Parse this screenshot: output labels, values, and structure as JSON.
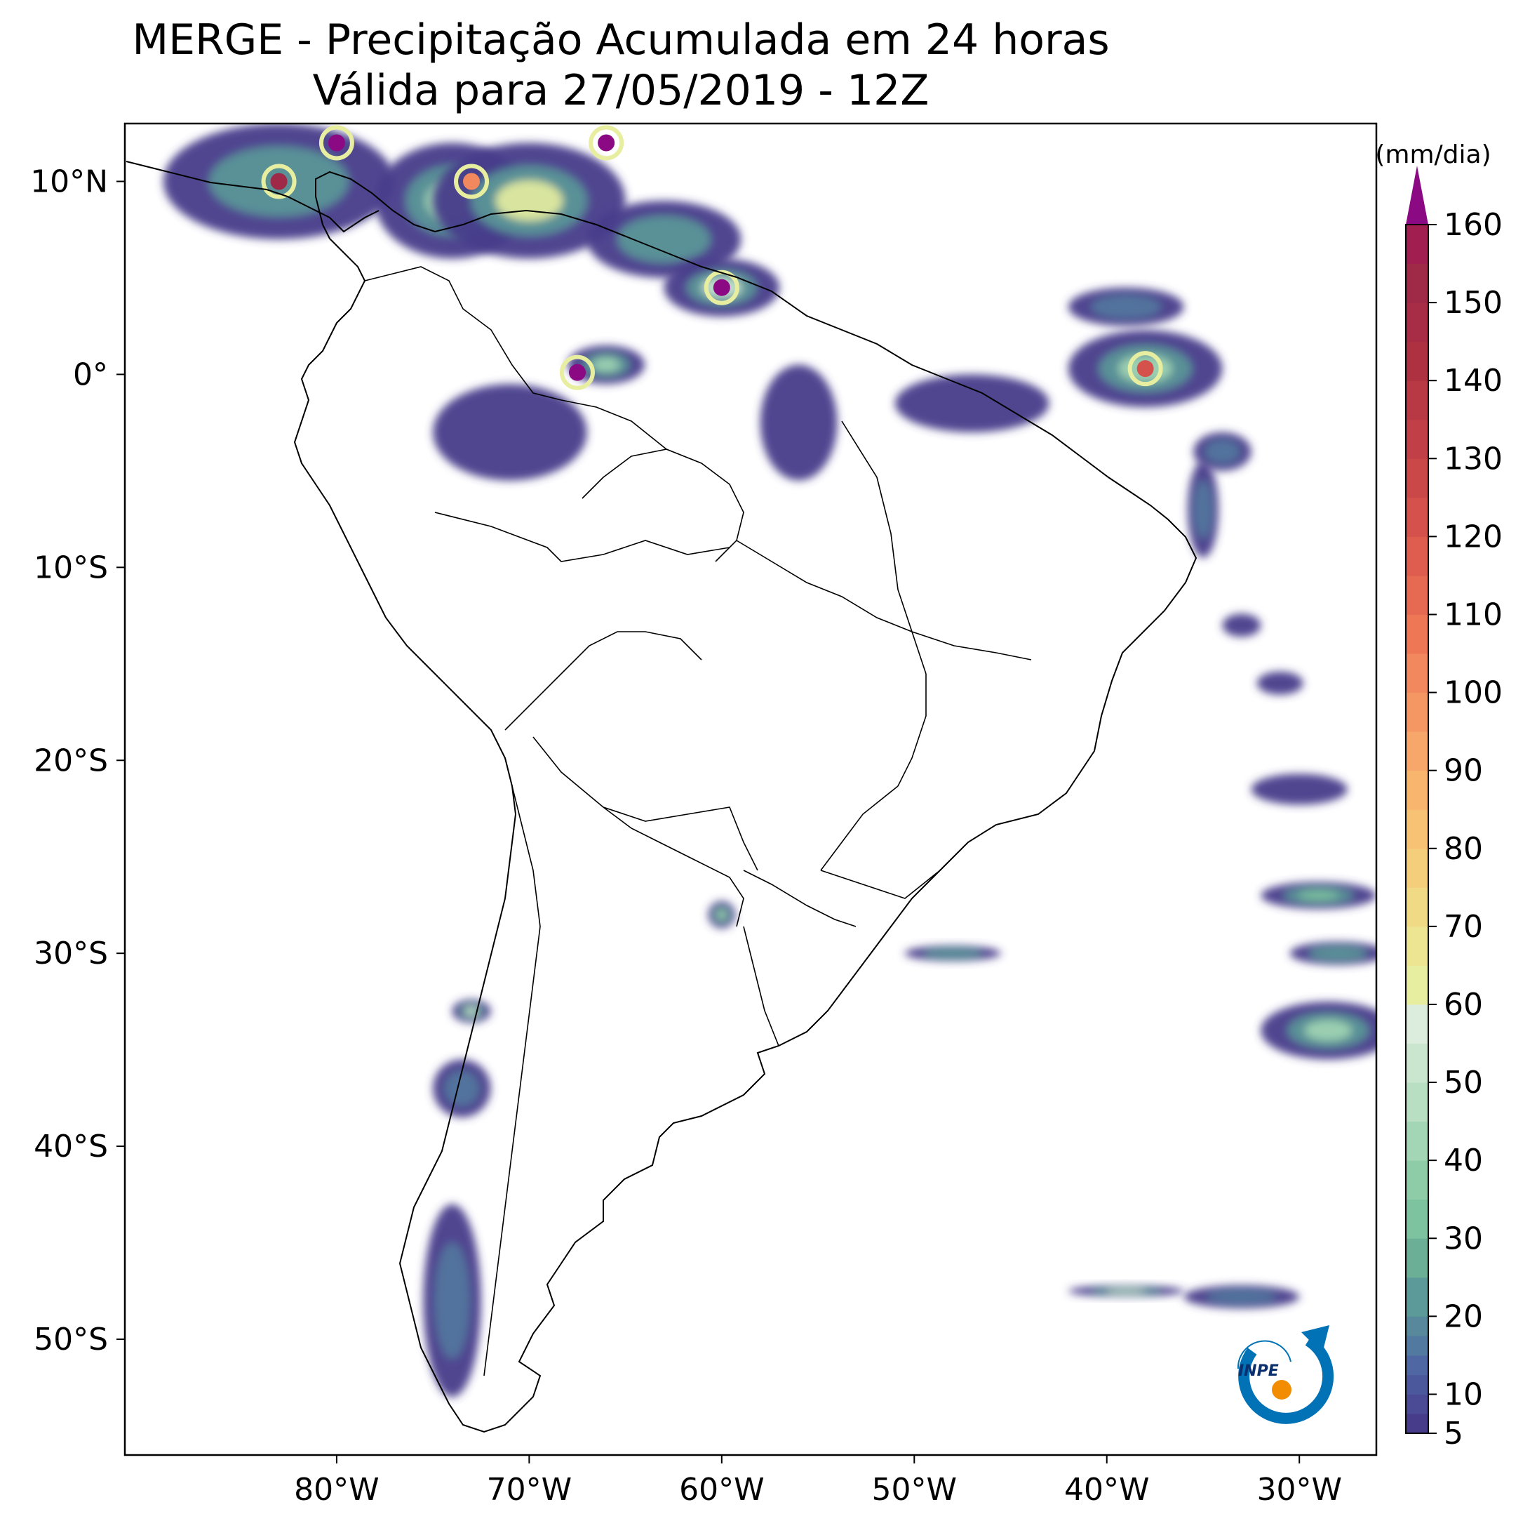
{
  "title": {
    "line1": "MERGE - Precipitação Acumulada em 24 horas",
    "line2": "Válida para 27/05/2019 - 12Z"
  },
  "map": {
    "projection": "PlateCarree",
    "lon_range": [
      -91,
      -26
    ],
    "lat_range": [
      -56,
      13
    ],
    "lon_ticks": [
      {
        "value": -80,
        "label": "80°W"
      },
      {
        "value": -70,
        "label": "70°W"
      },
      {
        "value": -60,
        "label": "60°W"
      },
      {
        "value": -50,
        "label": "50°W"
      },
      {
        "value": -40,
        "label": "40°W"
      },
      {
        "value": -30,
        "label": "30°W"
      }
    ],
    "lat_ticks": [
      {
        "value": 10,
        "label": "10°N"
      },
      {
        "value": 0,
        "label": "0°"
      },
      {
        "value": -10,
        "label": "10°S"
      },
      {
        "value": -20,
        "label": "20°S"
      },
      {
        "value": -30,
        "label": "30°S"
      },
      {
        "value": -40,
        "label": "40°S"
      },
      {
        "value": -50,
        "label": "50°S"
      }
    ],
    "rain_areas": [
      {
        "lon": -83,
        "lat": 10,
        "rx": 6,
        "ry": 3,
        "level": 20
      },
      {
        "lon": -74,
        "lat": 9,
        "rx": 4,
        "ry": 3,
        "level": 40
      },
      {
        "lon": -70,
        "lat": 9,
        "rx": 5,
        "ry": 3,
        "level": 60
      },
      {
        "lon": -63,
        "lat": 7,
        "rx": 4,
        "ry": 2,
        "level": 20
      },
      {
        "lon": -60,
        "lat": 4.5,
        "rx": 3,
        "ry": 1.5,
        "level": 50
      },
      {
        "lon": -66,
        "lat": 0.5,
        "rx": 2,
        "ry": 1,
        "level": 40
      },
      {
        "lon": -71,
        "lat": -3,
        "rx": 4,
        "ry": 2.5,
        "level": 10
      },
      {
        "lon": -56,
        "lat": -2.5,
        "rx": 2,
        "ry": 3,
        "level": 10
      },
      {
        "lon": -47,
        "lat": -1.5,
        "rx": 4,
        "ry": 1.5,
        "level": 10
      },
      {
        "lon": -38,
        "lat": 0.3,
        "rx": 4,
        "ry": 2,
        "level": 40
      },
      {
        "lon": -39,
        "lat": 3.5,
        "rx": 3,
        "ry": 1,
        "level": 15
      },
      {
        "lon": -35,
        "lat": -7,
        "rx": 0.8,
        "ry": 2.5,
        "level": 15
      },
      {
        "lon": -33,
        "lat": -13,
        "rx": 1,
        "ry": 0.6,
        "level": 10
      },
      {
        "lon": -31,
        "lat": -16,
        "rx": 1.2,
        "ry": 0.6,
        "level": 10
      },
      {
        "lon": -30,
        "lat": -21.5,
        "rx": 2.5,
        "ry": 0.8,
        "level": 10
      },
      {
        "lon": -29,
        "lat": -27,
        "rx": 3,
        "ry": 0.7,
        "level": 30
      },
      {
        "lon": -28,
        "lat": -30,
        "rx": 2.5,
        "ry": 0.6,
        "level": 20
      },
      {
        "lon": -28.5,
        "lat": -34,
        "rx": 3.5,
        "ry": 1.5,
        "level": 40
      },
      {
        "lon": -60,
        "lat": -28,
        "rx": 0.7,
        "ry": 0.7,
        "level": 40
      },
      {
        "lon": -48,
        "lat": -30,
        "rx": 2.5,
        "ry": 0.4,
        "level": 20
      },
      {
        "lon": -73,
        "lat": -33,
        "rx": 1,
        "ry": 0.6,
        "level": 50
      },
      {
        "lon": -73.5,
        "lat": -37,
        "rx": 1.5,
        "ry": 1.5,
        "level": 15
      },
      {
        "lon": -74,
        "lat": -48,
        "rx": 1.5,
        "ry": 5,
        "level": 15
      },
      {
        "lon": -39,
        "lat": -47.5,
        "rx": 3,
        "ry": 0.3,
        "level": 50
      },
      {
        "lon": -33,
        "lat": -47.8,
        "rx": 3,
        "ry": 0.6,
        "level": 15
      },
      {
        "lon": -34,
        "lat": -4,
        "rx": 1.5,
        "ry": 1,
        "level": 15
      }
    ],
    "hotspots": [
      {
        "lon": -80,
        "lat": 12,
        "level": 160
      },
      {
        "lon": -83,
        "lat": 10,
        "level": 150
      },
      {
        "lon": -66,
        "lat": 12,
        "level": 160
      },
      {
        "lon": -60,
        "lat": 4.5,
        "level": 160
      },
      {
        "lon": -67.5,
        "lat": 0.1,
        "level": 160
      },
      {
        "lon": -73,
        "lat": 10,
        "level": 100
      },
      {
        "lon": -38,
        "lat": 0.3,
        "level": 120
      }
    ]
  },
  "colorbar": {
    "unit": "(mm/dia)",
    "min": 5,
    "max": 160,
    "extend": "max",
    "extend_color": "#8b0a84",
    "ticks": [
      5,
      10,
      20,
      30,
      40,
      50,
      60,
      70,
      80,
      90,
      100,
      110,
      120,
      130,
      140,
      150,
      160
    ],
    "tick_labels": [
      "5",
      "10",
      "20",
      "30",
      "40",
      "50",
      "60",
      "70",
      "80",
      "90",
      "100",
      "110",
      "120",
      "130",
      "140",
      "150",
      "160"
    ],
    "levels": [
      5,
      7.5,
      10,
      12.5,
      15,
      17.5,
      20,
      25,
      30,
      35,
      40,
      45,
      50,
      55,
      60,
      65,
      70,
      75,
      80,
      85,
      90,
      95,
      100,
      105,
      110,
      115,
      120,
      125,
      130,
      135,
      140,
      145,
      150,
      155,
      160
    ],
    "colors": [
      "#473c8a",
      "#4a4a95",
      "#4c589c",
      "#4f67a2",
      "#52799f",
      "#57889c",
      "#5b9a98",
      "#6bb096",
      "#7dc39f",
      "#8ecca8",
      "#a3d6b4",
      "#b8dfc1",
      "#cbe6cf",
      "#dcedde",
      "#e8eea0",
      "#eee592",
      "#f1da86",
      "#f5ce7c",
      "#f8c274",
      "#f8b56e",
      "#f7a769",
      "#f59763",
      "#f2885d",
      "#ee7756",
      "#e66a52",
      "#de5d4e",
      "#d4524b",
      "#cb4849",
      "#c13f47",
      "#b83844",
      "#ae3142",
      "#a62d45",
      "#9e2a48",
      "#a01f50"
    ]
  },
  "logo": {
    "text": "INPE",
    "ring_color": "#0072b5",
    "dot_color": "#f28c00"
  }
}
